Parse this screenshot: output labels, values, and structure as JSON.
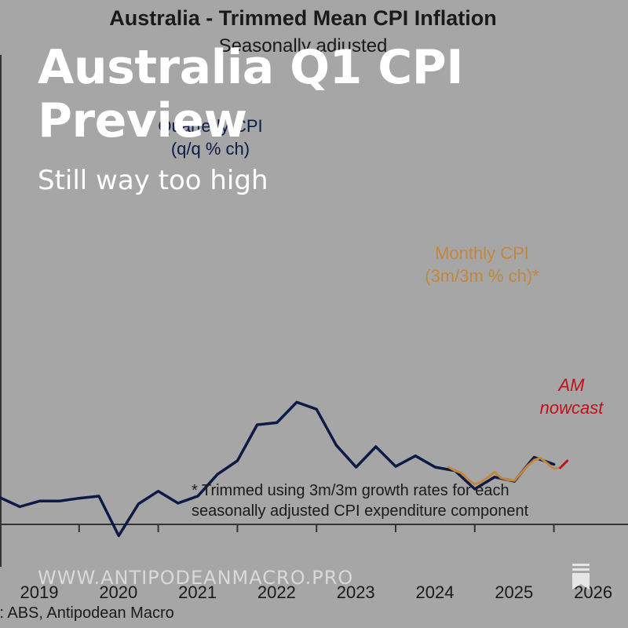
{
  "overlay": {
    "title": "Australia Q1 CPI Preview",
    "subtitle": "Still way too high",
    "website": "WWW.ANTIPODEANMACRO.PRO",
    "bookmark_icon": "bookmark-icon"
  },
  "chart_data": {
    "type": "line",
    "title": "Australia - Trimmed Mean CPI Inflation",
    "subtitle": "Seasonally adjusted",
    "x_ticks": [
      "2019",
      "2020",
      "2021",
      "2022",
      "2023",
      "2024",
      "2025",
      "2026"
    ],
    "xlim": [
      2019.0,
      2026.95
    ],
    "ylim": [
      -0.2,
      1.9
    ],
    "source": "Source: ABS, Antipodean Macro",
    "footnote_lines": [
      "* Trimmed using 3m/3m growth rates for each",
      "seasonally adjusted CPI expenditure component"
    ],
    "series": [
      {
        "name": "Quarterly CPI (q/q % ch)",
        "label_lines": [
          "Quarterly CPI",
          "(q/q % ch)"
        ],
        "color": "#0d1a45",
        "x": [
          2019.0,
          2019.25,
          2019.5,
          2019.75,
          2020.0,
          2020.25,
          2020.5,
          2020.75,
          2021.0,
          2021.25,
          2021.5,
          2021.75,
          2022.0,
          2022.25,
          2022.5,
          2022.75,
          2023.0,
          2023.25,
          2023.5,
          2023.75,
          2024.0,
          2024.25,
          2024.5,
          2024.75,
          2025.0,
          2025.25,
          2025.5,
          2025.75,
          2026.0
        ],
        "values": [
          0.38,
          0.25,
          0.33,
          0.33,
          0.37,
          0.4,
          -0.16,
          0.29,
          0.47,
          0.3,
          0.4,
          0.71,
          0.9,
          1.41,
          1.44,
          1.73,
          1.63,
          1.12,
          0.81,
          1.1,
          0.82,
          0.97,
          0.81,
          0.76,
          0.5,
          0.67,
          0.61,
          0.95,
          0.85
        ]
      },
      {
        "name": "Monthly CPI (3m/3m % ch)*",
        "label_lines": [
          "Monthly CPI",
          "(3m/3m % ch)*"
        ],
        "color": "#c2873e",
        "x": [
          2024.67,
          2024.75,
          2024.83,
          2024.92,
          2025.0,
          2025.08,
          2025.17,
          2025.25,
          2025.33,
          2025.42,
          2025.5,
          2025.58,
          2025.67,
          2025.75,
          2025.83,
          2025.92,
          2026.0,
          2026.08
        ],
        "values": [
          0.81,
          0.76,
          0.73,
          0.63,
          0.57,
          0.6,
          0.67,
          0.74,
          0.66,
          0.63,
          0.62,
          0.72,
          0.83,
          0.91,
          0.94,
          0.86,
          0.79,
          0.8
        ]
      },
      {
        "name": "AM nowcast",
        "label_lines": [
          "AM",
          "nowcast"
        ],
        "color": "#c0101a",
        "x": [
          2026.08,
          2026.17
        ],
        "values": [
          0.8,
          0.9
        ]
      }
    ]
  }
}
